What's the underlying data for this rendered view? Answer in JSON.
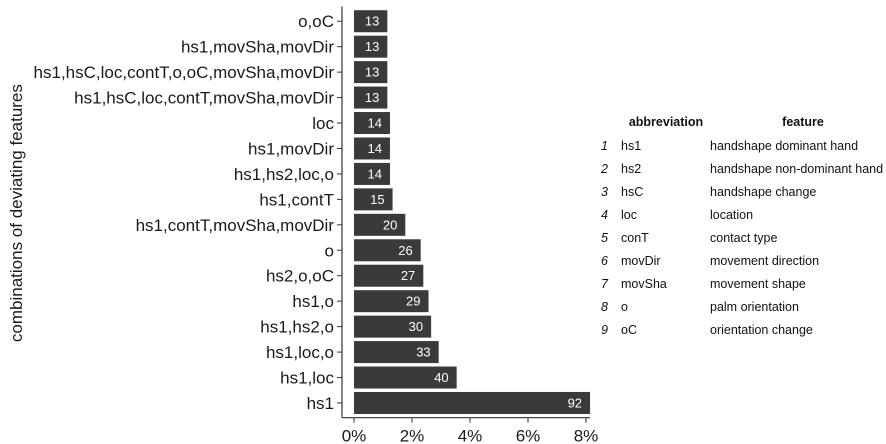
{
  "chart_data": {
    "type": "bar",
    "orientation": "horizontal",
    "ylabel": "combinations of deviating features",
    "categories": [
      "o,oC",
      "hs1,movSha,movDir",
      "hs1,hsC,loc,contT,o,oC,movSha,movDir",
      "hs1,hsC,loc,contT,movSha,movDir",
      "loc",
      "hs1,movDir",
      "hs1,hs2,loc,o",
      "hs1,contT",
      "hs1,contT,movSha,movDir",
      "o",
      "hs2,o,oC",
      "hs1,o",
      "hs1,hs2,o",
      "hs1,loc,o",
      "hs1,loc",
      "hs1"
    ],
    "counts": [
      13,
      13,
      13,
      13,
      14,
      14,
      14,
      15,
      20,
      26,
      27,
      29,
      30,
      33,
      40,
      92
    ],
    "values_percent": [
      1.15,
      1.15,
      1.15,
      1.15,
      1.24,
      1.24,
      1.24,
      1.33,
      1.77,
      2.3,
      2.39,
      2.57,
      2.66,
      2.92,
      3.54,
      8.14
    ],
    "xlim": [
      0,
      8.5
    ],
    "xticks": [
      0,
      2,
      4,
      6,
      8
    ],
    "xtick_labels": [
      "0%",
      "2%",
      "4%",
      "6%",
      "8%"
    ],
    "grid": false,
    "bar_color": "#3a3a3a",
    "label_color": "#ffffff"
  },
  "legend_table": {
    "headers": {
      "abbreviation": "abbreviation",
      "feature": "feature"
    },
    "rows": [
      {
        "n": "1",
        "abbr": "hs1",
        "feature": "handshape dominant hand"
      },
      {
        "n": "2",
        "abbr": "hs2",
        "feature": "handshape non-dominant hand"
      },
      {
        "n": "3",
        "abbr": "hsC",
        "feature": "handshape change"
      },
      {
        "n": "4",
        "abbr": "loc",
        "feature": "location"
      },
      {
        "n": "5",
        "abbr": "conT",
        "feature": "contact type"
      },
      {
        "n": "6",
        "abbr": "movDir",
        "feature": "movement direction"
      },
      {
        "n": "7",
        "abbr": "movSha",
        "feature": "movement shape"
      },
      {
        "n": "8",
        "abbr": "o",
        "feature": "palm orientation"
      },
      {
        "n": "9",
        "abbr": "oC",
        "feature": "orientation change"
      }
    ]
  }
}
